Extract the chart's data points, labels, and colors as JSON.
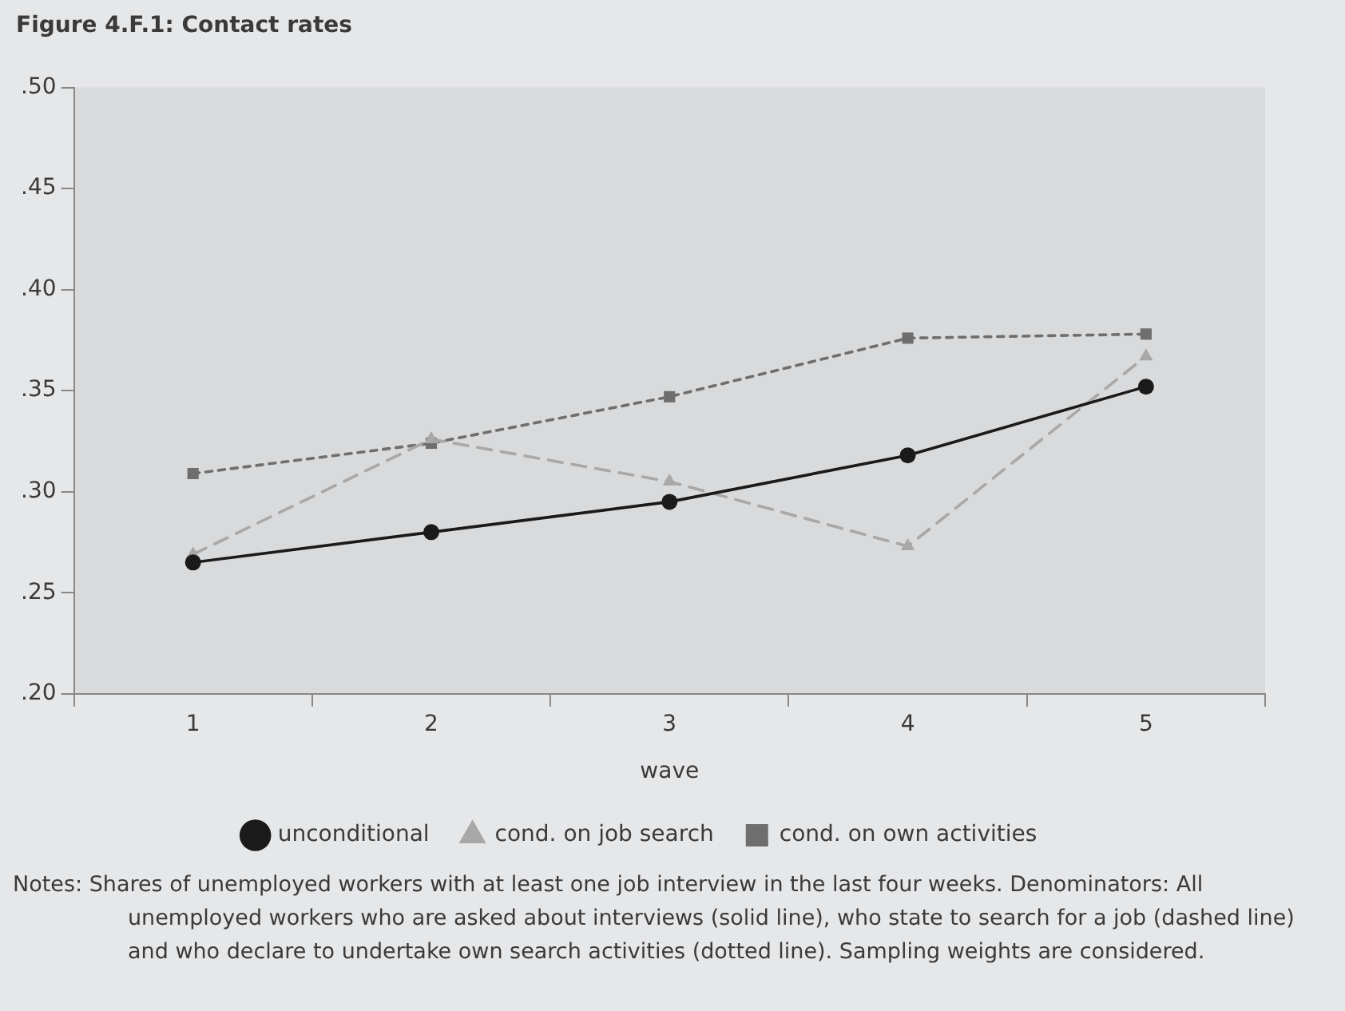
{
  "chart_data": {
    "type": "line",
    "title": "Figure 4.F.1: Contact rates",
    "xlabel": "wave",
    "categories": [
      "1",
      "2",
      "3",
      "4",
      "5"
    ],
    "series": [
      {
        "name": "unconditional",
        "color": "#1a1a1a",
        "marker": "circle",
        "line_style": "solid",
        "values": [
          0.265,
          0.28,
          0.295,
          0.318,
          0.352
        ]
      },
      {
        "name": "cond. on job search",
        "color": "#a8a8a8",
        "marker": "triangle",
        "line_style": "dashed",
        "values": [
          0.269,
          0.326,
          0.305,
          0.273,
          0.367
        ]
      },
      {
        "name": "cond. on own activities",
        "color": "#6e6e6e",
        "marker": "square",
        "line_style": "dotted",
        "values": [
          0.309,
          0.324,
          0.347,
          0.376,
          0.378
        ]
      }
    ],
    "ylim": [
      0.2,
      0.5
    ],
    "yticks": [
      {
        "value": 0.2,
        "label": ".20"
      },
      {
        "value": 0.25,
        "label": ".25"
      },
      {
        "value": 0.3,
        "label": ".30"
      },
      {
        "value": 0.35,
        "label": ".35"
      },
      {
        "value": 0.4,
        "label": ".40"
      },
      {
        "value": 0.45,
        "label": ".45"
      },
      {
        "value": 0.5,
        "label": ".50"
      }
    ],
    "grid": false,
    "legend": "bottom",
    "annotations": [
      "Notes: Shares of unemployed workers with at least one job interview in the last four weeks. Denominators: All unemployed workers who are asked about interviews (solid line), who state to search for a job (dashed line) and who declare to undertake own search activities (dotted line). Sampling weights are considered."
    ]
  }
}
